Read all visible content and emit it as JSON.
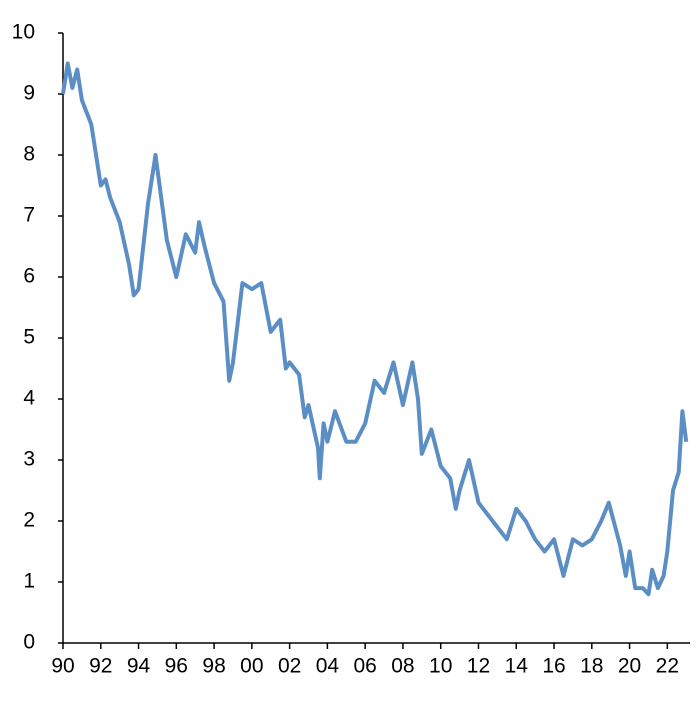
{
  "chart_data": {
    "type": "line",
    "x": [
      1990.0,
      1990.25,
      1990.5,
      1990.75,
      1991.0,
      1991.5,
      1992.0,
      1992.25,
      1992.5,
      1993.0,
      1993.5,
      1993.75,
      1994.0,
      1994.5,
      1994.9,
      1995.5,
      1996.0,
      1996.5,
      1997.0,
      1997.2,
      1997.5,
      1998.0,
      1998.5,
      1998.8,
      1999.0,
      1999.5,
      2000.0,
      2000.5,
      2001.0,
      2001.5,
      2001.8,
      2002.0,
      2002.5,
      2002.8,
      2003.0,
      2003.5,
      2003.6,
      2003.8,
      2004.0,
      2004.4,
      2005.0,
      2005.5,
      2006.0,
      2006.5,
      2007.0,
      2007.5,
      2008.0,
      2008.5,
      2008.8,
      2009.0,
      2009.5,
      2010.0,
      2010.5,
      2010.8,
      2011.0,
      2011.5,
      2012.0,
      2012.5,
      2013.0,
      2013.5,
      2014.0,
      2014.5,
      2015.0,
      2015.5,
      2016.0,
      2016.5,
      2017.0,
      2017.5,
      2018.0,
      2018.5,
      2018.9,
      2019.5,
      2019.8,
      2020.0,
      2020.3,
      2020.7,
      2021.0,
      2021.2,
      2021.5,
      2021.8,
      2022.0,
      2022.3,
      2022.6,
      2022.8,
      2023.0
    ],
    "series": [
      {
        "color": "#5b8ec4",
        "values": [
          9.0,
          9.5,
          9.1,
          9.4,
          8.9,
          8.5,
          7.5,
          7.6,
          7.3,
          6.9,
          6.2,
          5.7,
          5.8,
          7.2,
          8.0,
          6.6,
          6.0,
          6.7,
          6.4,
          6.9,
          6.5,
          5.9,
          5.6,
          4.3,
          4.6,
          5.9,
          5.8,
          5.9,
          5.1,
          5.3,
          4.5,
          4.6,
          4.4,
          3.7,
          3.9,
          3.2,
          2.7,
          3.6,
          3.3,
          3.8,
          3.3,
          3.3,
          3.6,
          4.3,
          4.1,
          4.6,
          3.9,
          4.6,
          4.0,
          3.1,
          3.5,
          2.9,
          2.7,
          2.2,
          2.5,
          3.0,
          2.3,
          2.1,
          1.9,
          1.7,
          2.2,
          2.0,
          1.7,
          1.5,
          1.7,
          1.1,
          1.7,
          1.6,
          1.7,
          2.0,
          2.3,
          1.6,
          1.1,
          1.5,
          0.9,
          0.9,
          0.8,
          1.2,
          0.9,
          1.1,
          1.5,
          2.5,
          2.8,
          3.8,
          3.3
        ]
      }
    ],
    "xlim": [
      1990,
      2023.2
    ],
    "xticks": [
      {
        "value": 1990,
        "label": "90"
      },
      {
        "value": 1992,
        "label": "92"
      },
      {
        "value": 1994,
        "label": "94"
      },
      {
        "value": 1996,
        "label": "96"
      },
      {
        "value": 1998,
        "label": "98"
      },
      {
        "value": 2000,
        "label": "00"
      },
      {
        "value": 2002,
        "label": "02"
      },
      {
        "value": 2004,
        "label": "04"
      },
      {
        "value": 2006,
        "label": "06"
      },
      {
        "value": 2008,
        "label": "08"
      },
      {
        "value": 2010,
        "label": "10"
      },
      {
        "value": 2012,
        "label": "12"
      },
      {
        "value": 2014,
        "label": "14"
      },
      {
        "value": 2016,
        "label": "16"
      },
      {
        "value": 2018,
        "label": "18"
      },
      {
        "value": 2020,
        "label": "20"
      },
      {
        "value": 2022,
        "label": "22"
      }
    ],
    "ylim": [
      0,
      10
    ],
    "yticks": [
      0,
      1,
      2,
      3,
      4,
      5,
      6,
      7,
      8,
      9,
      10
    ]
  }
}
